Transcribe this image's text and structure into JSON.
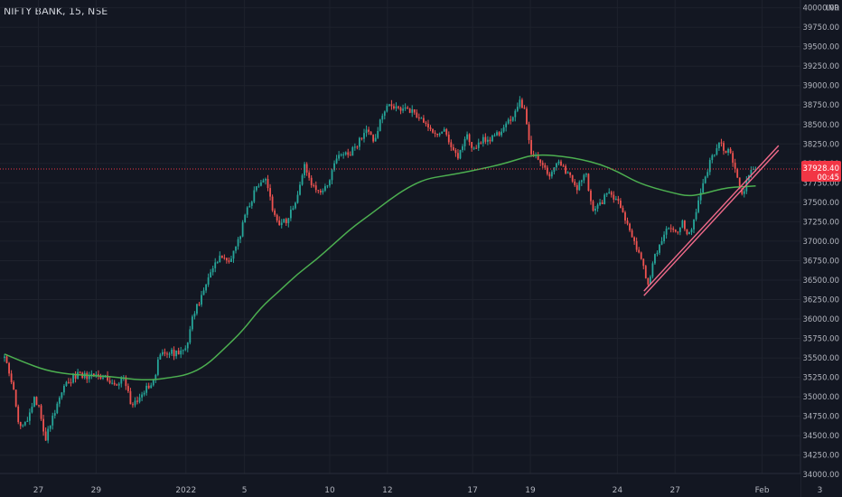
{
  "header": {
    "symbol_label": "NIFTY BANK, 15, NSE"
  },
  "colors": {
    "background": "#131722",
    "up": "#26a69a",
    "down": "#ef5350",
    "ma": "#4caf50",
    "trendline": "#f06a8a",
    "last_price": "#f23645",
    "grid": "#1e222d",
    "axis_text": "#b2b5be"
  },
  "chart_data": {
    "type": "candlestick",
    "title": "NIFTY BANK, 15, NSE",
    "y_axis": {
      "currency_label": "INR",
      "range": [
        33875,
        40100
      ],
      "ticks": [
        "40000.00",
        "39750.00",
        "39500.00",
        "39250.00",
        "39000.00",
        "38750.00",
        "38500.00",
        "38250.00",
        "38000.00",
        "37750.00",
        "37500.00",
        "37250.00",
        "37000.00",
        "36750.00",
        "36500.00",
        "36250.00",
        "36000.00",
        "35750.00",
        "35500.00",
        "35250.00",
        "35000.00",
        "34750.00",
        "34500.00",
        "34250.00",
        "34000.00"
      ]
    },
    "x_axis": {
      "ticks": [
        {
          "label": "27",
          "s": 0.37
        },
        {
          "label": "29",
          "s": 1.0
        },
        {
          "label": "2022",
          "s": 1.98
        },
        {
          "label": "5",
          "s": 2.62
        },
        {
          "label": "10",
          "s": 3.55
        },
        {
          "label": "12",
          "s": 4.18
        },
        {
          "label": "17",
          "s": 5.11
        },
        {
          "label": "19",
          "s": 5.74
        },
        {
          "label": "24",
          "s": 6.69
        },
        {
          "label": "27",
          "s": 7.32
        },
        {
          "label": "Feb",
          "s": 8.27
        },
        {
          "label": "3",
          "s": 8.9
        }
      ]
    },
    "last_price": {
      "value": 37928.4,
      "label": "37928.40",
      "countdown": "00:45"
    },
    "closes": [
      [
        0.0,
        35500
      ],
      [
        0.1,
        35100
      ],
      [
        0.15,
        34650
      ],
      [
        0.25,
        34700
      ],
      [
        0.32,
        35000
      ],
      [
        0.38,
        34850
      ],
      [
        0.44,
        34400
      ],
      [
        0.5,
        34650
      ],
      [
        0.6,
        35000
      ],
      [
        0.7,
        35200
      ],
      [
        0.8,
        35300
      ],
      [
        0.9,
        35250
      ],
      [
        1.0,
        35300
      ],
      [
        1.1,
        35250
      ],
      [
        1.2,
        35150
      ],
      [
        1.3,
        35250
      ],
      [
        1.38,
        34900
      ],
      [
        1.45,
        34950
      ],
      [
        1.55,
        35100
      ],
      [
        1.62,
        35150
      ],
      [
        1.68,
        35500
      ],
      [
        1.75,
        35600
      ],
      [
        1.85,
        35550
      ],
      [
        1.98,
        35600
      ],
      [
        2.05,
        36000
      ],
      [
        2.15,
        36300
      ],
      [
        2.25,
        36600
      ],
      [
        2.35,
        36800
      ],
      [
        2.45,
        36750
      ],
      [
        2.55,
        37000
      ],
      [
        2.65,
        37400
      ],
      [
        2.75,
        37700
      ],
      [
        2.85,
        37800
      ],
      [
        2.92,
        37450
      ],
      [
        3.0,
        37200
      ],
      [
        3.1,
        37300
      ],
      [
        3.2,
        37600
      ],
      [
        3.28,
        38000
      ],
      [
        3.35,
        37700
      ],
      [
        3.45,
        37600
      ],
      [
        3.55,
        37750
      ],
      [
        3.62,
        38100
      ],
      [
        3.75,
        38100
      ],
      [
        3.85,
        38250
      ],
      [
        3.95,
        38400
      ],
      [
        4.05,
        38300
      ],
      [
        4.12,
        38650
      ],
      [
        4.2,
        38750
      ],
      [
        4.3,
        38700
      ],
      [
        4.4,
        38700
      ],
      [
        4.5,
        38600
      ],
      [
        4.6,
        38500
      ],
      [
        4.7,
        38400
      ],
      [
        4.8,
        38400
      ],
      [
        4.88,
        38200
      ],
      [
        4.95,
        38100
      ],
      [
        5.05,
        38350
      ],
      [
        5.12,
        38200
      ],
      [
        5.2,
        38300
      ],
      [
        5.3,
        38300
      ],
      [
        5.4,
        38400
      ],
      [
        5.48,
        38500
      ],
      [
        5.55,
        38600
      ],
      [
        5.62,
        38800
      ],
      [
        5.68,
        38700
      ],
      [
        5.74,
        38150
      ],
      [
        5.85,
        38000
      ],
      [
        5.95,
        37850
      ],
      [
        6.05,
        38000
      ],
      [
        6.15,
        37850
      ],
      [
        6.25,
        37700
      ],
      [
        6.35,
        37850
      ],
      [
        6.42,
        37400
      ],
      [
        6.52,
        37500
      ],
      [
        6.6,
        37650
      ],
      [
        6.7,
        37500
      ],
      [
        6.78,
        37250
      ],
      [
        6.88,
        37000
      ],
      [
        6.95,
        36750
      ],
      [
        7.02,
        36450
      ],
      [
        7.1,
        36800
      ],
      [
        7.18,
        37050
      ],
      [
        7.25,
        37200
      ],
      [
        7.32,
        37100
      ],
      [
        7.4,
        37250
      ],
      [
        7.47,
        37050
      ],
      [
        7.55,
        37400
      ],
      [
        7.62,
        37700
      ],
      [
        7.7,
        38000
      ],
      [
        7.78,
        38250
      ],
      [
        7.86,
        38200
      ],
      [
        7.93,
        38100
      ],
      [
        8.0,
        37800
      ],
      [
        8.05,
        37600
      ],
      [
        8.1,
        37750
      ],
      [
        8.15,
        37900
      ],
      [
        8.2,
        37928
      ]
    ],
    "ma": [
      [
        0.0,
        35550
      ],
      [
        0.2,
        35450
      ],
      [
        0.45,
        35340
      ],
      [
        0.7,
        35290
      ],
      [
        1.0,
        35270
      ],
      [
        1.2,
        35255
      ],
      [
        1.4,
        35225
      ],
      [
        1.6,
        35215
      ],
      [
        1.8,
        35245
      ],
      [
        2.0,
        35285
      ],
      [
        2.2,
        35400
      ],
      [
        2.4,
        35620
      ],
      [
        2.6,
        35850
      ],
      [
        2.8,
        36150
      ],
      [
        3.0,
        36360
      ],
      [
        3.2,
        36580
      ],
      [
        3.4,
        36760
      ],
      [
        3.6,
        36970
      ],
      [
        3.8,
        37180
      ],
      [
        4.0,
        37350
      ],
      [
        4.2,
        37530
      ],
      [
        4.4,
        37690
      ],
      [
        4.6,
        37800
      ],
      [
        4.8,
        37840
      ],
      [
        5.0,
        37880
      ],
      [
        5.2,
        37930
      ],
      [
        5.4,
        37980
      ],
      [
        5.6,
        38050
      ],
      [
        5.74,
        38100
      ],
      [
        5.9,
        38110
      ],
      [
        6.1,
        38090
      ],
      [
        6.3,
        38050
      ],
      [
        6.5,
        37990
      ],
      [
        6.7,
        37890
      ],
      [
        6.9,
        37760
      ],
      [
        7.1,
        37680
      ],
      [
        7.3,
        37620
      ],
      [
        7.45,
        37580
      ],
      [
        7.6,
        37600
      ],
      [
        7.75,
        37650
      ],
      [
        7.9,
        37690
      ],
      [
        8.05,
        37700
      ],
      [
        8.2,
        37710
      ]
    ],
    "trendline": {
      "start": [
        6.98,
        36330
      ],
      "end": [
        8.45,
        38200
      ]
    }
  }
}
